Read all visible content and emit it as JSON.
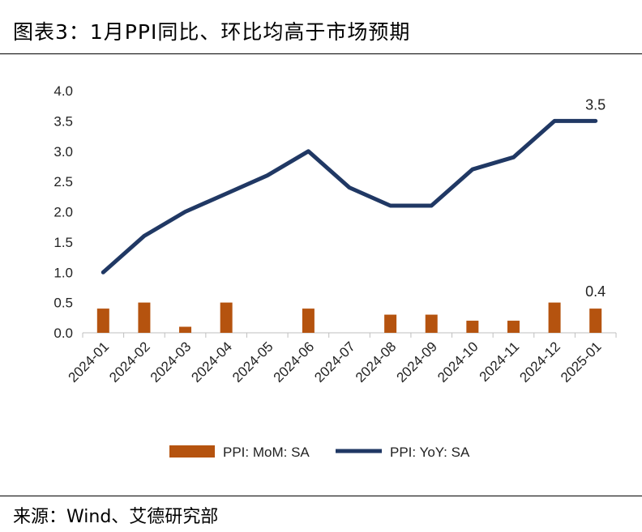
{
  "header": {
    "title": "图表3：1月PPI同比、环比均高于市场预期"
  },
  "footer": {
    "source": "来源：Wind、艾德研究部"
  },
  "colors": {
    "bar": "#B5530F",
    "line": "#203864"
  },
  "chart_data": {
    "type": "bar+line",
    "categories": [
      "2024-01",
      "2024-02",
      "2024-03",
      "2024-04",
      "2024-05",
      "2024-06",
      "2024-07",
      "2024-08",
      "2024-09",
      "2024-10",
      "2024-11",
      "2024-12",
      "2025-01"
    ],
    "series": [
      {
        "name": "PPI: MoM: SA",
        "type": "bar",
        "values": [
          0.4,
          0.5,
          0.1,
          0.5,
          0.0,
          0.4,
          0.0,
          0.3,
          0.3,
          0.2,
          0.2,
          0.5,
          0.4
        ]
      },
      {
        "name": "PPI: YoY: SA",
        "type": "line",
        "values": [
          1.0,
          1.6,
          2.0,
          2.3,
          2.6,
          3.0,
          2.4,
          2.1,
          2.1,
          2.7,
          2.9,
          3.5,
          3.5
        ]
      }
    ],
    "yticks": [
      "0.0",
      "0.5",
      "1.0",
      "1.5",
      "2.0",
      "2.5",
      "3.0",
      "3.5",
      "4.0"
    ],
    "ylim": [
      0,
      4.0
    ],
    "data_labels": [
      {
        "series": "PPI: YoY: SA",
        "index": 12,
        "text": "3.5"
      },
      {
        "series": "PPI: MoM: SA",
        "index": 12,
        "text": "0.4"
      }
    ],
    "legend": "bottom-center",
    "grid": false,
    "title": "",
    "xlabel": "",
    "ylabel": ""
  }
}
